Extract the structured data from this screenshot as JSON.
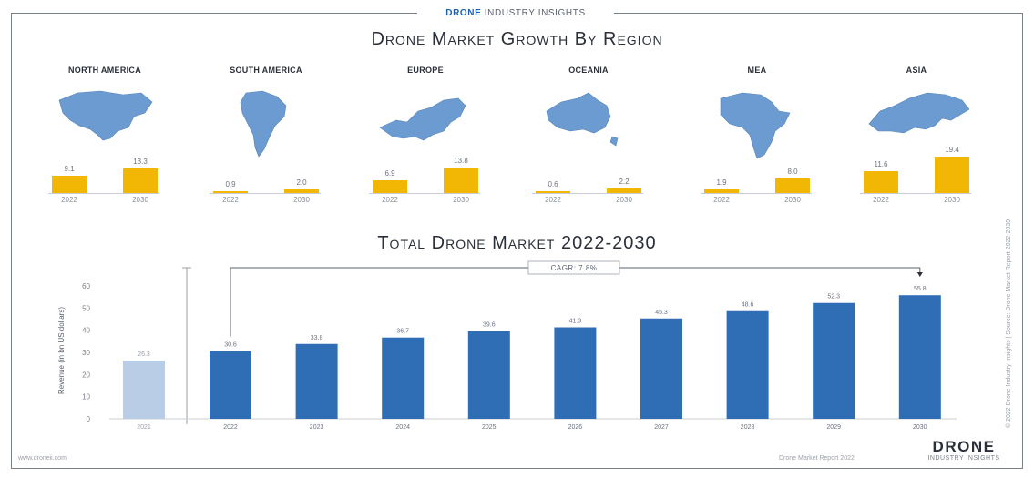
{
  "header": {
    "brand_bold": "DRONE",
    "brand_rest": "INDUSTRY INSIGHTS"
  },
  "regions_title": "Drone Market Growth By Region",
  "total_title": "Total Drone Market 2022-2030",
  "colors": {
    "region_bar": "#f2b705",
    "total_bar": "#2f6db5",
    "total_bar_base": "#b9cde6",
    "map_fill": "#6b9bd1"
  },
  "chart_data": [
    {
      "type": "bar",
      "title": "Drone Market Growth By Region",
      "regions": [
        {
          "name": "NORTH AMERICA",
          "map_icon": "north-america-map-icon",
          "years": [
            "2022",
            "2030"
          ],
          "values": [
            9.1,
            13.3
          ],
          "labels": [
            "9.1",
            "13.3"
          ]
        },
        {
          "name": "SOUTH AMERICA",
          "map_icon": "south-america-map-icon",
          "years": [
            "2022",
            "2030"
          ],
          "values": [
            0.9,
            2.0
          ],
          "labels": [
            "0.9",
            "2.0"
          ]
        },
        {
          "name": "EUROPE",
          "map_icon": "europe-map-icon",
          "years": [
            "2022",
            "2030"
          ],
          "values": [
            6.9,
            13.8
          ],
          "labels": [
            "6.9",
            "13.8"
          ]
        },
        {
          "name": "OCEANIA",
          "map_icon": "oceania-map-icon",
          "years": [
            "2022",
            "2030"
          ],
          "values": [
            0.6,
            2.2
          ],
          "labels": [
            "0.6",
            "2.2"
          ]
        },
        {
          "name": "MEA",
          "map_icon": "africa-map-icon",
          "years": [
            "2022",
            "2030"
          ],
          "values": [
            1.9,
            8.0
          ],
          "labels": [
            "1.9",
            "8.0"
          ]
        },
        {
          "name": "ASIA",
          "map_icon": "asia-map-icon",
          "years": [
            "2022",
            "2030"
          ],
          "values": [
            11.6,
            19.4
          ],
          "labels": [
            "11.6",
            "19.4"
          ]
        }
      ]
    },
    {
      "type": "bar",
      "title": "Total Drone Market 2022-2030",
      "ylabel": "Revenue (in bn US dollars)",
      "ylim": [
        0,
        60
      ],
      "yticks": [
        0,
        10,
        20,
        30,
        40,
        50,
        60
      ],
      "annotation": "CAGR: 7.8%",
      "base_bar": {
        "value": 26.3,
        "label": "26.3",
        "year": "2021"
      },
      "categories": [
        "2022",
        "2023",
        "2024",
        "2025",
        "2026",
        "2027",
        "2028",
        "2029",
        "2030"
      ],
      "values": [
        30.6,
        33.8,
        36.7,
        39.6,
        41.3,
        45.3,
        48.6,
        52.3,
        55.8
      ],
      "labels": [
        "30.6",
        "33.8",
        "36.7",
        "39.6",
        "41.3",
        "45.3",
        "48.6",
        "52.3",
        "55.8"
      ]
    }
  ],
  "side_note": "© 2022 Drone Industry Insights | Source: Drone Market Report 2022-2030",
  "footer": {
    "left": "www.droneii.com",
    "right": "Drone Market Report 2022",
    "logo_main": "DRONE",
    "logo_sub": "INDUSTRY INSIGHTS"
  }
}
